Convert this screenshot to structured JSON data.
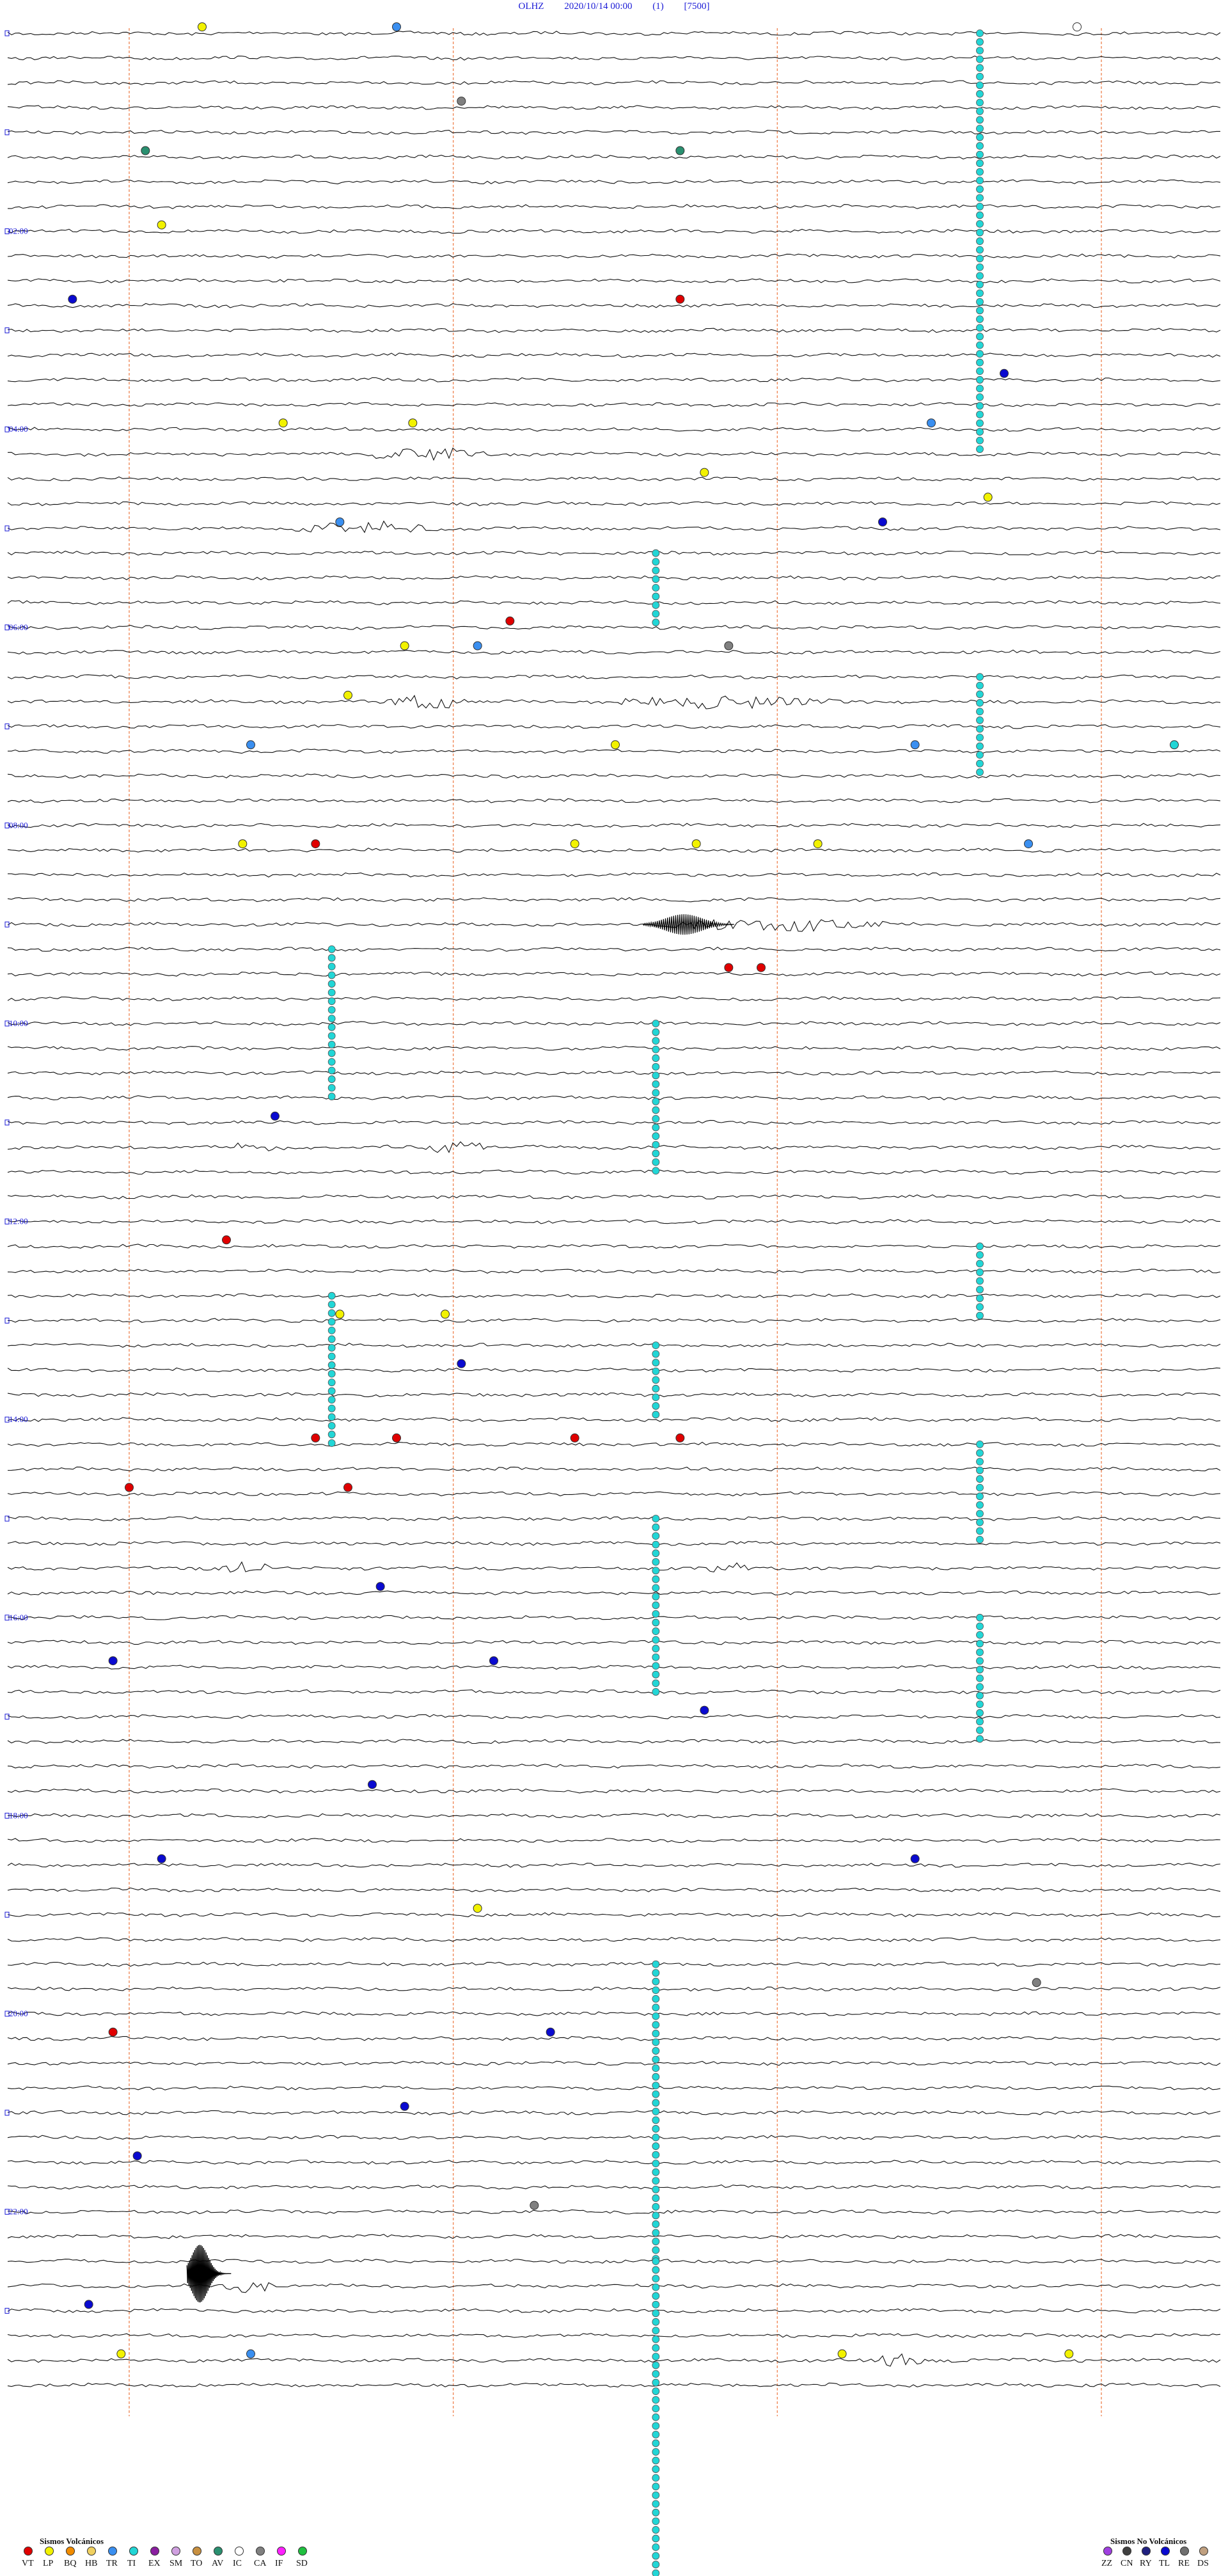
{
  "header": {
    "station": "OLHZ",
    "datetime": "2020/10/14 00:00",
    "channel": "(1)",
    "gain": "[7500]"
  },
  "time_labels": [
    "02:00",
    "04:00",
    "06:00",
    "08:00",
    "10:00",
    "12:00",
    "14:00",
    "16:00",
    "18:00",
    "20:00",
    "22:00"
  ],
  "legend": {
    "volcanic_title": "Sismos Volcánicos",
    "volcanic": [
      {
        "code": "VT",
        "color": "#e00000"
      },
      {
        "code": "LP",
        "color": "#f2f200"
      },
      {
        "code": "BQ",
        "color": "#f28c00"
      },
      {
        "code": "HB",
        "color": "#f0d060"
      },
      {
        "code": "TR",
        "color": "#3a8ff0"
      },
      {
        "code": "TI",
        "color": "#22d6d6"
      },
      {
        "code": "EX",
        "color": "#8a1ea0"
      },
      {
        "code": "SM",
        "color": "#d0a0e0"
      },
      {
        "code": "TO",
        "color": "#c89040"
      },
      {
        "code": "AV",
        "color": "#2a9070"
      },
      {
        "code": "IC",
        "color": "#ffffff"
      },
      {
        "code": "CA",
        "color": "#808080"
      },
      {
        "code": "IF",
        "color": "#ff20ff"
      },
      {
        "code": "SD",
        "color": "#20c040"
      }
    ],
    "nonvolcanic_title": "Sismos No Volcánicos",
    "nonvolcanic": [
      {
        "code": "ZZ",
        "color": "#a040e0"
      },
      {
        "code": "CN",
        "color": "#404040"
      },
      {
        "code": "RY",
        "color": "#202080"
      },
      {
        "code": "TL",
        "color": "#0a0ad0"
      },
      {
        "code": "RE",
        "color": "#707070"
      },
      {
        "code": "DS",
        "color": "#c0a080"
      }
    ]
  },
  "chart_data": {
    "type": "helicorder",
    "traces": 96,
    "minutes_per_trace": 15,
    "start": "2020/10/14 00:00",
    "event_types": {
      "TI_columns": [
        {
          "trace_start": 0,
          "trace_end": 17,
          "minute": 12
        },
        {
          "trace_start": 21,
          "trace_end": 24,
          "minute": 8
        },
        {
          "trace_start": 26,
          "trace_end": 30,
          "minute": 12
        },
        {
          "trace_start": 37,
          "trace_end": 43,
          "minute": 4
        },
        {
          "trace_start": 40,
          "trace_end": 46,
          "minute": 8
        },
        {
          "trace_start": 49,
          "trace_end": 52,
          "minute": 12
        },
        {
          "trace_start": 51,
          "trace_end": 57,
          "minute": 4
        },
        {
          "trace_start": 53,
          "trace_end": 56,
          "minute": 8
        },
        {
          "trace_start": 57,
          "trace_end": 61,
          "minute": 12
        },
        {
          "trace_start": 60,
          "trace_end": 67,
          "minute": 8
        },
        {
          "trace_start": 64,
          "trace_end": 69,
          "minute": 12
        },
        {
          "trace_start": 78,
          "trace_end": 90,
          "minute": 8
        },
        {
          "trace_start": 90,
          "trace_end": 104,
          "minute": 8
        }
      ],
      "events": [
        {
          "trace": 0,
          "minute": 2.4,
          "type": "LP"
        },
        {
          "trace": 0,
          "minute": 4.8,
          "type": "TR"
        },
        {
          "trace": 0,
          "minute": 13.2,
          "type": "IC"
        },
        {
          "trace": 3,
          "minute": 5.6,
          "type": "CA"
        },
        {
          "trace": 5,
          "minute": 1.7,
          "type": "AV"
        },
        {
          "trace": 5,
          "minute": 8.3,
          "type": "AV"
        },
        {
          "trace": 8,
          "minute": 1.9,
          "type": "LP"
        },
        {
          "trace": 11,
          "minute": 0.8,
          "type": "TL"
        },
        {
          "trace": 11,
          "minute": 8.3,
          "type": "VT"
        },
        {
          "trace": 14,
          "minute": 12.3,
          "type": "TL"
        },
        {
          "trace": 16,
          "minute": 3.4,
          "type": "LP"
        },
        {
          "trace": 16,
          "minute": 5.0,
          "type": "LP"
        },
        {
          "trace": 16,
          "minute": 11.4,
          "type": "TR"
        },
        {
          "trace": 18,
          "minute": 8.6,
          "type": "LP"
        },
        {
          "trace": 19,
          "minute": 12.1,
          "type": "LP"
        },
        {
          "trace": 20,
          "minute": 4.1,
          "type": "TR"
        },
        {
          "trace": 20,
          "minute": 10.8,
          "type": "TL"
        },
        {
          "trace": 24,
          "minute": 6.2,
          "type": "VT"
        },
        {
          "trace": 25,
          "minute": 4.9,
          "type": "LP"
        },
        {
          "trace": 25,
          "minute": 5.8,
          "type": "TR"
        },
        {
          "trace": 25,
          "minute": 8.9,
          "type": "CA"
        },
        {
          "trace": 27,
          "minute": 4.2,
          "type": "LP"
        },
        {
          "trace": 29,
          "minute": 3.0,
          "type": "TR"
        },
        {
          "trace": 29,
          "minute": 7.5,
          "type": "LP"
        },
        {
          "trace": 29,
          "minute": 11.2,
          "type": "TR"
        },
        {
          "trace": 29,
          "minute": 14.4,
          "type": "TI"
        },
        {
          "trace": 33,
          "minute": 2.9,
          "type": "LP"
        },
        {
          "trace": 33,
          "minute": 3.8,
          "type": "VT"
        },
        {
          "trace": 33,
          "minute": 7.0,
          "type": "LP"
        },
        {
          "trace": 33,
          "minute": 8.5,
          "type": "LP"
        },
        {
          "trace": 33,
          "minute": 10.0,
          "type": "LP"
        },
        {
          "trace": 33,
          "minute": 12.6,
          "type": "TR"
        },
        {
          "trace": 38,
          "minute": 8.9,
          "type": "VT"
        },
        {
          "trace": 38,
          "minute": 9.3,
          "type": "VT"
        },
        {
          "trace": 44,
          "minute": 3.3,
          "type": "TL"
        },
        {
          "trace": 49,
          "minute": 2.7,
          "type": "VT"
        },
        {
          "trace": 52,
          "minute": 4.1,
          "type": "LP"
        },
        {
          "trace": 52,
          "minute": 5.4,
          "type": "LP"
        },
        {
          "trace": 54,
          "minute": 5.6,
          "type": "TL"
        },
        {
          "trace": 57,
          "minute": 3.8,
          "type": "VT"
        },
        {
          "trace": 57,
          "minute": 4.8,
          "type": "VT"
        },
        {
          "trace": 57,
          "minute": 7.0,
          "type": "VT"
        },
        {
          "trace": 57,
          "minute": 8.3,
          "type": "VT"
        },
        {
          "trace": 59,
          "minute": 1.5,
          "type": "VT"
        },
        {
          "trace": 59,
          "minute": 4.2,
          "type": "VT"
        },
        {
          "trace": 63,
          "minute": 4.6,
          "type": "TL"
        },
        {
          "trace": 66,
          "minute": 1.3,
          "type": "TL"
        },
        {
          "trace": 66,
          "minute": 6.0,
          "type": "TL"
        },
        {
          "trace": 68,
          "minute": 8.6,
          "type": "TL"
        },
        {
          "trace": 71,
          "minute": 4.5,
          "type": "TL"
        },
        {
          "trace": 74,
          "minute": 1.9,
          "type": "TL"
        },
        {
          "trace": 74,
          "minute": 11.2,
          "type": "TL"
        },
        {
          "trace": 76,
          "minute": 5.8,
          "type": "LP"
        },
        {
          "trace": 79,
          "minute": 12.7,
          "type": "CA"
        },
        {
          "trace": 81,
          "minute": 1.3,
          "type": "VT"
        },
        {
          "trace": 81,
          "minute": 6.7,
          "type": "TL"
        },
        {
          "trace": 84,
          "minute": 4.9,
          "type": "TL"
        },
        {
          "trace": 86,
          "minute": 1.6,
          "type": "TL"
        },
        {
          "trace": 88,
          "minute": 6.5,
          "type": "CA"
        },
        {
          "trace": 92,
          "minute": 1.0,
          "type": "TL"
        },
        {
          "trace": 94,
          "minute": 1.4,
          "type": "LP"
        },
        {
          "trace": 94,
          "minute": 3.0,
          "type": "TR"
        },
        {
          "trace": 94,
          "minute": 10.3,
          "type": "LP"
        },
        {
          "trace": 94,
          "minute": 13.1,
          "type": "LP"
        }
      ]
    },
    "signals": [
      {
        "trace": 17,
        "minute_start": 4.3,
        "minute_end": 6.0
      },
      {
        "trace": 20,
        "minute_start": 3.4,
        "minute_end": 5.4
      },
      {
        "trace": 27,
        "minute_start": 4.5,
        "minute_end": 5.8
      },
      {
        "trace": 27,
        "minute_start": 7.3,
        "minute_end": 10.3
      },
      {
        "trace": 36,
        "minute_start": 8.0,
        "minute_end": 11.0
      },
      {
        "trace": 45,
        "minute_start": 2.6,
        "minute_end": 3.5
      },
      {
        "trace": 45,
        "minute_start": 5.1,
        "minute_end": 6.1
      },
      {
        "trace": 62,
        "minute_start": 2.6,
        "minute_end": 3.3
      },
      {
        "trace": 62,
        "minute_start": 8.5,
        "minute_end": 9.2
      },
      {
        "trace": 91,
        "minute_start": 2.6,
        "minute_end": 3.4
      },
      {
        "trace": 94,
        "minute_start": 10.4,
        "minute_end": 11.4
      }
    ]
  }
}
